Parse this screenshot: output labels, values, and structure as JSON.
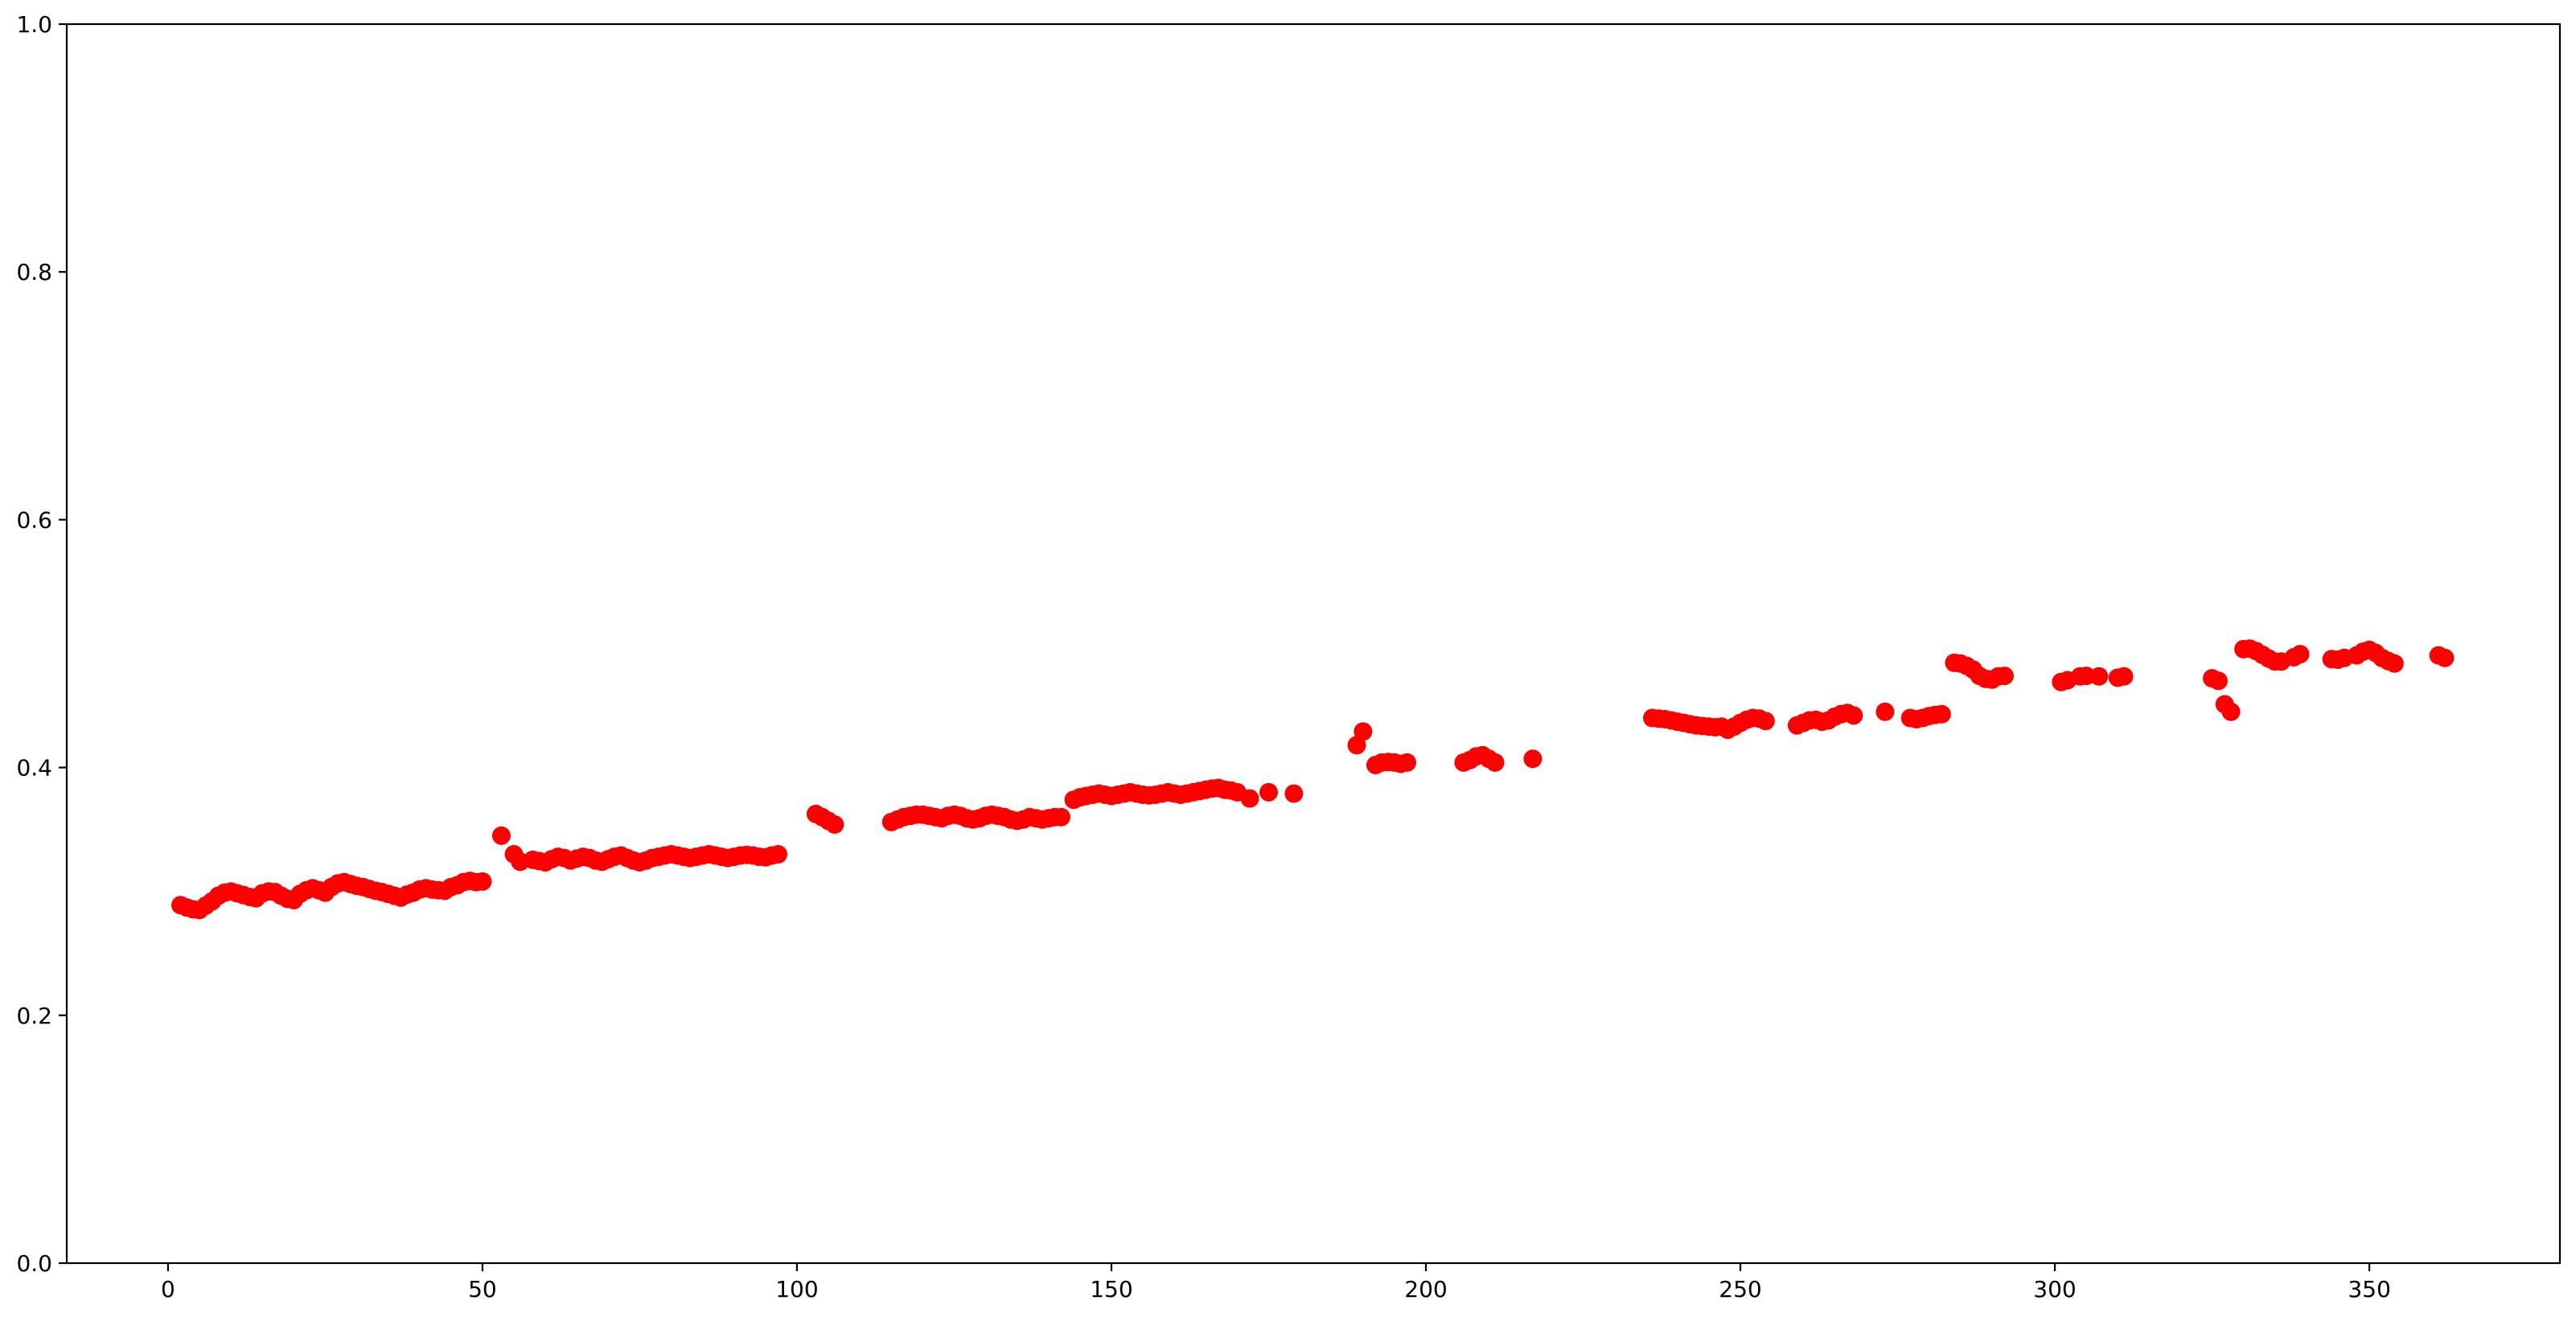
{
  "figure": {
    "background": "#ffffff",
    "title": ""
  },
  "chart_data": {
    "type": "scatter",
    "title": "",
    "xlabel": "",
    "ylabel": "",
    "legend": null,
    "grid": false,
    "marker_color": "#ff0000",
    "axis_color": "#000000",
    "xlim": [
      -16.1,
      380.3
    ],
    "ylim": [
      0.0,
      1.0
    ],
    "xticks": [
      0,
      50,
      100,
      150,
      200,
      250,
      300,
      350
    ],
    "xtick_labels": [
      "0",
      "50",
      "100",
      "150",
      "200",
      "250",
      "300",
      "350"
    ],
    "yticks": [
      0.0,
      0.2,
      0.4,
      0.6,
      0.8,
      1.0
    ],
    "ytick_labels": [
      "0.0",
      "0.2",
      "0.4",
      "0.6",
      "0.8",
      "1.0"
    ],
    "points": [
      [
        2,
        0.289
      ],
      [
        3,
        0.287
      ],
      [
        4,
        0.2855
      ],
      [
        5,
        0.285
      ],
      [
        6,
        0.2885
      ],
      [
        7,
        0.292
      ],
      [
        8,
        0.2965
      ],
      [
        9,
        0.299
      ],
      [
        10,
        0.3
      ],
      [
        11,
        0.2985
      ],
      [
        12,
        0.297
      ],
      [
        13,
        0.2955
      ],
      [
        14,
        0.2945
      ],
      [
        15,
        0.2985
      ],
      [
        16,
        0.3
      ],
      [
        17,
        0.2995
      ],
      [
        18,
        0.2965
      ],
      [
        19,
        0.294
      ],
      [
        20,
        0.293
      ],
      [
        21,
        0.298
      ],
      [
        22,
        0.301
      ],
      [
        23,
        0.3025
      ],
      [
        24,
        0.301
      ],
      [
        25,
        0.299
      ],
      [
        26,
        0.3035
      ],
      [
        27,
        0.3065
      ],
      [
        28,
        0.3075
      ],
      [
        29,
        0.306
      ],
      [
        30,
        0.3045
      ],
      [
        31,
        0.3035
      ],
      [
        32,
        0.302
      ],
      [
        33,
        0.3005
      ],
      [
        34,
        0.2995
      ],
      [
        35,
        0.298
      ],
      [
        36,
        0.2965
      ],
      [
        37,
        0.295
      ],
      [
        38,
        0.2975
      ],
      [
        39,
        0.299
      ],
      [
        40,
        0.3015
      ],
      [
        41,
        0.3025
      ],
      [
        42,
        0.3015
      ],
      [
        43,
        0.301
      ],
      [
        44,
        0.3005
      ],
      [
        45,
        0.3035
      ],
      [
        46,
        0.305
      ],
      [
        47,
        0.3075
      ],
      [
        48,
        0.3085
      ],
      [
        49,
        0.3075
      ],
      [
        50,
        0.308
      ],
      [
        53,
        0.345
      ],
      [
        55,
        0.33
      ],
      [
        56,
        0.324
      ],
      [
        58,
        0.3255
      ],
      [
        59,
        0.3245
      ],
      [
        60,
        0.3235
      ],
      [
        61,
        0.326
      ],
      [
        62,
        0.328
      ],
      [
        63,
        0.327
      ],
      [
        64,
        0.325
      ],
      [
        65,
        0.3265
      ],
      [
        66,
        0.328
      ],
      [
        67,
        0.327
      ],
      [
        68,
        0.325
      ],
      [
        69,
        0.324
      ],
      [
        70,
        0.326
      ],
      [
        71,
        0.328
      ],
      [
        72,
        0.329
      ],
      [
        73,
        0.327
      ],
      [
        74,
        0.325
      ],
      [
        75,
        0.3235
      ],
      [
        76,
        0.325
      ],
      [
        77,
        0.327
      ],
      [
        78,
        0.328
      ],
      [
        79,
        0.329
      ],
      [
        80,
        0.33
      ],
      [
        81,
        0.329
      ],
      [
        82,
        0.328
      ],
      [
        83,
        0.327
      ],
      [
        84,
        0.328
      ],
      [
        85,
        0.329
      ],
      [
        86,
        0.33
      ],
      [
        87,
        0.329
      ],
      [
        88,
        0.328
      ],
      [
        89,
        0.327
      ],
      [
        90,
        0.328
      ],
      [
        91,
        0.329
      ],
      [
        92,
        0.3295
      ],
      [
        93,
        0.329
      ],
      [
        94,
        0.328
      ],
      [
        95,
        0.3275
      ],
      [
        96,
        0.329
      ],
      [
        97,
        0.33
      ],
      [
        103,
        0.3625
      ],
      [
        104,
        0.36
      ],
      [
        105,
        0.357
      ],
      [
        106,
        0.354
      ],
      [
        115,
        0.356
      ],
      [
        116,
        0.358
      ],
      [
        117,
        0.36
      ],
      [
        118,
        0.361
      ],
      [
        119,
        0.362
      ],
      [
        120,
        0.362
      ],
      [
        121,
        0.361
      ],
      [
        122,
        0.36
      ],
      [
        123,
        0.359
      ],
      [
        124,
        0.361
      ],
      [
        125,
        0.362
      ],
      [
        126,
        0.361
      ],
      [
        127,
        0.359
      ],
      [
        128,
        0.358
      ],
      [
        129,
        0.359
      ],
      [
        130,
        0.361
      ],
      [
        131,
        0.362
      ],
      [
        132,
        0.361
      ],
      [
        133,
        0.36
      ],
      [
        134,
        0.358
      ],
      [
        135,
        0.357
      ],
      [
        136,
        0.358
      ],
      [
        137,
        0.36
      ],
      [
        138,
        0.359
      ],
      [
        139,
        0.358
      ],
      [
        140,
        0.359
      ],
      [
        141,
        0.36
      ],
      [
        142,
        0.36
      ],
      [
        144,
        0.374
      ],
      [
        145,
        0.376
      ],
      [
        146,
        0.377
      ],
      [
        147,
        0.378
      ],
      [
        148,
        0.379
      ],
      [
        149,
        0.378
      ],
      [
        150,
        0.377
      ],
      [
        151,
        0.378
      ],
      [
        152,
        0.379
      ],
      [
        153,
        0.38
      ],
      [
        154,
        0.379
      ],
      [
        155,
        0.378
      ],
      [
        156,
        0.3775
      ],
      [
        157,
        0.378
      ],
      [
        158,
        0.379
      ],
      [
        159,
        0.38
      ],
      [
        160,
        0.379
      ],
      [
        161,
        0.378
      ],
      [
        162,
        0.379
      ],
      [
        163,
        0.38
      ],
      [
        164,
        0.381
      ],
      [
        165,
        0.382
      ],
      [
        166,
        0.383
      ],
      [
        167,
        0.3835
      ],
      [
        168,
        0.382
      ],
      [
        169,
        0.3815
      ],
      [
        170,
        0.38
      ],
      [
        172,
        0.375
      ],
      [
        175,
        0.38
      ],
      [
        179,
        0.379
      ],
      [
        189,
        0.418
      ],
      [
        190,
        0.429
      ],
      [
        192,
        0.402
      ],
      [
        193,
        0.404
      ],
      [
        194,
        0.4045
      ],
      [
        195,
        0.404
      ],
      [
        196,
        0.403
      ],
      [
        197,
        0.404
      ],
      [
        206,
        0.404
      ],
      [
        207,
        0.406
      ],
      [
        208,
        0.409
      ],
      [
        209,
        0.41
      ],
      [
        210,
        0.407
      ],
      [
        211,
        0.404
      ],
      [
        217,
        0.407
      ],
      [
        236,
        0.44
      ],
      [
        237,
        0.4395
      ],
      [
        238,
        0.439
      ],
      [
        239,
        0.438
      ],
      [
        240,
        0.437
      ],
      [
        241,
        0.436
      ],
      [
        242,
        0.435
      ],
      [
        243,
        0.434
      ],
      [
        244,
        0.4335
      ],
      [
        245,
        0.433
      ],
      [
        246,
        0.4325
      ],
      [
        247,
        0.433
      ],
      [
        248,
        0.4305
      ],
      [
        249,
        0.433
      ],
      [
        250,
        0.436
      ],
      [
        251,
        0.4385
      ],
      [
        252,
        0.44
      ],
      [
        253,
        0.4395
      ],
      [
        254,
        0.4375
      ],
      [
        259,
        0.434
      ],
      [
        260,
        0.436
      ],
      [
        261,
        0.438
      ],
      [
        262,
        0.4385
      ],
      [
        263,
        0.437
      ],
      [
        264,
        0.438
      ],
      [
        265,
        0.441
      ],
      [
        266,
        0.443
      ],
      [
        267,
        0.444
      ],
      [
        268,
        0.442
      ],
      [
        273,
        0.445
      ],
      [
        277,
        0.44
      ],
      [
        278,
        0.439
      ],
      [
        279,
        0.44
      ],
      [
        280,
        0.4415
      ],
      [
        281,
        0.4425
      ],
      [
        282,
        0.443
      ],
      [
        284,
        0.4845
      ],
      [
        285,
        0.484
      ],
      [
        286,
        0.482
      ],
      [
        287,
        0.479
      ],
      [
        288,
        0.474
      ],
      [
        289,
        0.4715
      ],
      [
        290,
        0.471
      ],
      [
        291,
        0.4735
      ],
      [
        292,
        0.474
      ],
      [
        301,
        0.469
      ],
      [
        302,
        0.4705
      ],
      [
        304,
        0.4735
      ],
      [
        305,
        0.474
      ],
      [
        307,
        0.4735
      ],
      [
        310,
        0.4725
      ],
      [
        311,
        0.4735
      ],
      [
        325,
        0.472
      ],
      [
        326,
        0.47
      ],
      [
        327,
        0.451
      ],
      [
        328,
        0.445
      ],
      [
        330,
        0.4955
      ],
      [
        331,
        0.496
      ],
      [
        332,
        0.494
      ],
      [
        333,
        0.491
      ],
      [
        334,
        0.488
      ],
      [
        335,
        0.4855
      ],
      [
        336,
        0.4855
      ],
      [
        338,
        0.489
      ],
      [
        339,
        0.4915
      ],
      [
        344,
        0.4875
      ],
      [
        345,
        0.487
      ],
      [
        346,
        0.4885
      ],
      [
        348,
        0.4905
      ],
      [
        349,
        0.4935
      ],
      [
        350,
        0.495
      ],
      [
        351,
        0.4925
      ],
      [
        352,
        0.4885
      ],
      [
        353,
        0.486
      ],
      [
        354,
        0.484
      ],
      [
        361,
        0.4905
      ],
      [
        362,
        0.4885
      ]
    ]
  }
}
